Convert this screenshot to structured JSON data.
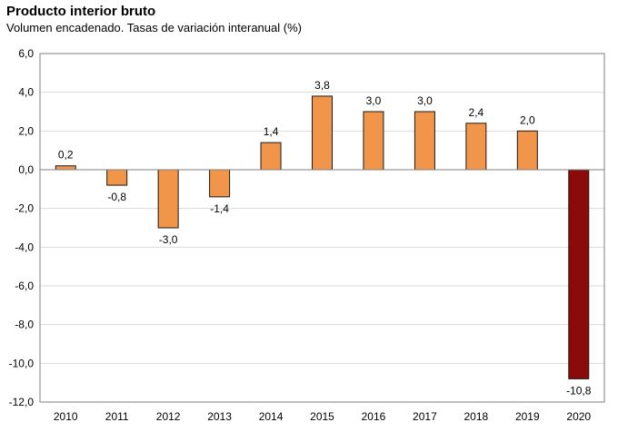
{
  "chart_data": {
    "type": "bar",
    "title": "Producto interior bruto",
    "subtitle": "Volumen encadenado. Tasas de variación interanual (%)",
    "xlabel": "",
    "ylabel": "",
    "categories": [
      "2010",
      "2011",
      "2012",
      "2013",
      "2014",
      "2015",
      "2016",
      "2017",
      "2018",
      "2019",
      "2020"
    ],
    "values": [
      0.2,
      -0.8,
      -3.0,
      -1.4,
      1.4,
      3.8,
      3.0,
      3.0,
      2.4,
      2.0,
      -10.8
    ],
    "value_labels": [
      "0,2",
      "-0,8",
      "-3,0",
      "-1,4",
      "1,4",
      "3,8",
      "3,0",
      "3,0",
      "2,4",
      "2,0",
      "-10,8"
    ],
    "ylim": [
      -12,
      6
    ],
    "yticks": [
      6,
      4,
      2,
      0,
      -2,
      -4,
      -6,
      -8,
      -10,
      -12
    ],
    "ytick_labels": [
      "6,0",
      "4,0",
      "2,0",
      "0,0",
      "-2,0",
      "-4,0",
      "-6,0",
      "-8,0",
      "-10,0",
      "-12,0"
    ],
    "grid": true,
    "colors": {
      "default": "#F0954A",
      "highlight": "#8B0A0A",
      "edge": "#1a1a1a",
      "grid": "#d9d9d9"
    },
    "highlight_index": 10
  }
}
